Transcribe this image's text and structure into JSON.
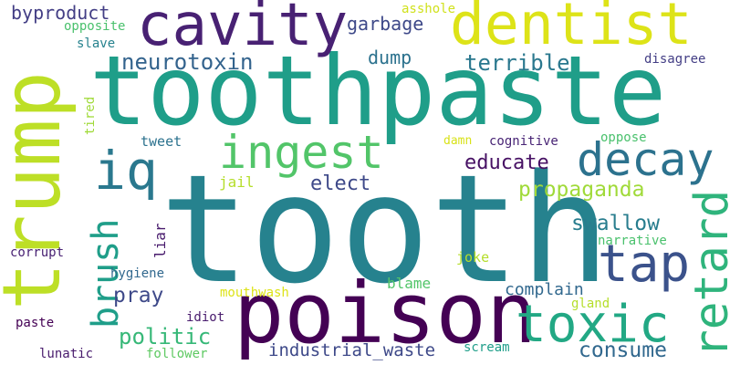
{
  "colors": {
    "background": "#ffffff",
    "palette": [
      "#440154",
      "#3b528b",
      "#21918c",
      "#5ec962",
      "#fde725"
    ]
  },
  "words": [
    {
      "text": "tooth",
      "color": "#26828e"
    },
    {
      "text": "toothpaste",
      "color": "#1f9e89"
    },
    {
      "text": "trump",
      "color": "#bddf26"
    },
    {
      "text": "poison",
      "color": "#440154"
    },
    {
      "text": "dentist",
      "color": "#dde318"
    },
    {
      "text": "cavity",
      "color": "#482173"
    },
    {
      "text": "toxic",
      "color": "#22a884"
    },
    {
      "text": "tap",
      "color": "#3b528b"
    },
    {
      "text": "retard",
      "color": "#2fb47c"
    },
    {
      "text": "iq",
      "color": "#2a788e"
    },
    {
      "text": "ingest",
      "color": "#52c569"
    },
    {
      "text": "decay",
      "color": "#2c728e"
    },
    {
      "text": "brush",
      "color": "#1f9e89"
    },
    {
      "text": "neurotoxin",
      "color": "#33638d"
    },
    {
      "text": "terrible",
      "color": "#2a788e"
    },
    {
      "text": "garbage",
      "color": "#3e4989"
    },
    {
      "text": "propaganda",
      "color": "#a0da39"
    },
    {
      "text": "swallow",
      "color": "#287d8e"
    },
    {
      "text": "educate",
      "color": "#471164"
    },
    {
      "text": "elect",
      "color": "#3e4989"
    },
    {
      "text": "politic",
      "color": "#37b878"
    },
    {
      "text": "consume",
      "color": "#31688e"
    },
    {
      "text": "pray",
      "color": "#3e4989"
    },
    {
      "text": "dump",
      "color": "#2c728e"
    },
    {
      "text": "byproduct",
      "color": "#433e85"
    },
    {
      "text": "industrial_waste",
      "color": "#3e4989"
    },
    {
      "text": "complain",
      "color": "#31688e"
    },
    {
      "text": "asshole",
      "color": "#d0e11c"
    },
    {
      "text": "opposite",
      "color": "#4ac16d"
    },
    {
      "text": "slave",
      "color": "#26828e"
    },
    {
      "text": "disagree",
      "color": "#433e85"
    },
    {
      "text": "tired",
      "color": "#a0da39"
    },
    {
      "text": "tweet",
      "color": "#2c728e"
    },
    {
      "text": "damn",
      "color": "#d8e219"
    },
    {
      "text": "cognitive",
      "color": "#482475"
    },
    {
      "text": "oppose",
      "color": "#4ac16d"
    },
    {
      "text": "jail",
      "color": "#b5de2b"
    },
    {
      "text": "liar",
      "color": "#481b6d"
    },
    {
      "text": "narrative",
      "color": "#4ac16d"
    },
    {
      "text": "joke",
      "color": "#b5de2b"
    },
    {
      "text": "corrupt",
      "color": "#482173"
    },
    {
      "text": "hygiene",
      "color": "#31688e"
    },
    {
      "text": "blame",
      "color": "#52c569"
    },
    {
      "text": "mouthwash",
      "color": "#dde318"
    },
    {
      "text": "gland",
      "color": "#b5de2b"
    },
    {
      "text": "idiot",
      "color": "#481b6d"
    },
    {
      "text": "paste",
      "color": "#440154"
    },
    {
      "text": "lunatic",
      "color": "#481b6d"
    },
    {
      "text": "follower",
      "color": "#5ec962"
    },
    {
      "text": "scream",
      "color": "#1f9e89"
    }
  ]
}
